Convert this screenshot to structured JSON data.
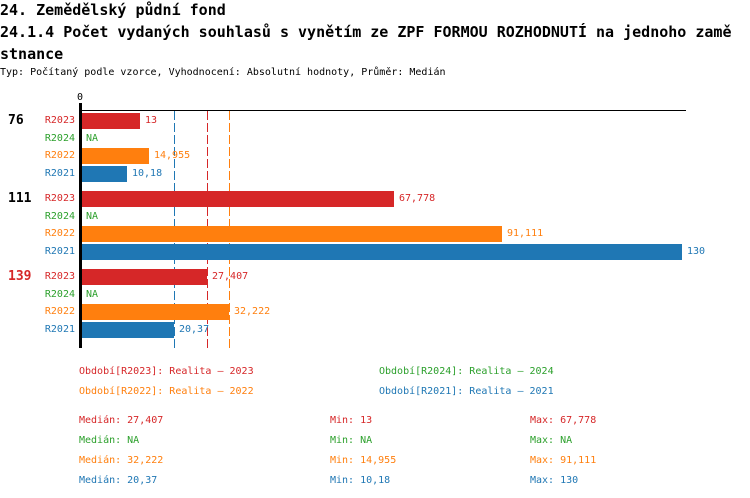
{
  "header": {
    "title": "24. Zemědělský půdní fond",
    "subtitle_line1": "24.1.4 Počet vydaných souhlasů s vynětím ze ZPF FORMOU ROZHODNUTÍ na jednoho zamě",
    "subtitle_line2": "stnance",
    "meta": "Typ: Počítaný podle vzorce, Vyhodnocení: Absolutní hodnoty, Průměr: Medián"
  },
  "colors": {
    "R2023": "#d62728",
    "R2024": "#2ca02c",
    "R2022": "#ff7f0e",
    "R2021": "#1f77b4",
    "axis": "#000000",
    "highlight_label": "#d62728",
    "normal_label": "#000000"
  },
  "chart_data": {
    "type": "bar",
    "orientation": "horizontal",
    "x_axis": {
      "zero_tick_label": "0",
      "min": 0,
      "max": 130,
      "grid": false
    },
    "series_order": [
      "R2023",
      "R2024",
      "R2022",
      "R2021"
    ],
    "groups": [
      {
        "label": "76",
        "label_highlighted": false,
        "bars": [
          {
            "series": "R2023",
            "value": 13,
            "display": "13"
          },
          {
            "series": "R2024",
            "value": null,
            "display": "NA"
          },
          {
            "series": "R2022",
            "value": 14.955,
            "display": "14,955"
          },
          {
            "series": "R2021",
            "value": 10.18,
            "display": "10,18"
          }
        ]
      },
      {
        "label": "111",
        "label_highlighted": false,
        "bars": [
          {
            "series": "R2023",
            "value": 67.778,
            "display": "67,778"
          },
          {
            "series": "R2024",
            "value": null,
            "display": "NA"
          },
          {
            "series": "R2022",
            "value": 91.111,
            "display": "91,111"
          },
          {
            "series": "R2021",
            "value": 130,
            "display": "130"
          }
        ]
      },
      {
        "label": "139",
        "label_highlighted": true,
        "bars": [
          {
            "series": "R2023",
            "value": 27.407,
            "display": "27,407"
          },
          {
            "series": "R2024",
            "value": null,
            "display": "NA"
          },
          {
            "series": "R2022",
            "value": 32.222,
            "display": "32,222"
          },
          {
            "series": "R2021",
            "value": 20.37,
            "display": "20,37"
          }
        ]
      }
    ],
    "median_lines": [
      {
        "series": "R2021",
        "value": 20.37
      },
      {
        "series": "R2023",
        "value": 27.407
      },
      {
        "series": "R2022",
        "value": 32.222
      }
    ]
  },
  "legend": {
    "items": [
      {
        "series": "R2023",
        "label": "Období[R2023]: Realita – 2023",
        "col": 0,
        "row": 0
      },
      {
        "series": "R2024",
        "label": "Období[R2024]: Realita – 2024",
        "col": 1,
        "row": 0
      },
      {
        "series": "R2022",
        "label": "Období[R2022]: Realita – 2022",
        "col": 0,
        "row": 1
      },
      {
        "series": "R2021",
        "label": "Období[R2021]: Realita – 2021",
        "col": 1,
        "row": 1
      }
    ]
  },
  "stats": {
    "rows": [
      {
        "series": "R2023",
        "median": "Medián: 27,407",
        "min": "Min: 13",
        "max": "Max: 67,778"
      },
      {
        "series": "R2024",
        "median": "Medián: NA",
        "min": "Min: NA",
        "max": "Max: NA"
      },
      {
        "series": "R2022",
        "median": "Medián: 32,222",
        "min": "Min: 14,955",
        "max": "Max: 91,111"
      },
      {
        "series": "R2021",
        "median": "Medián: 20,37",
        "min": "Min: 10,18",
        "max": "Max: 130"
      }
    ]
  }
}
